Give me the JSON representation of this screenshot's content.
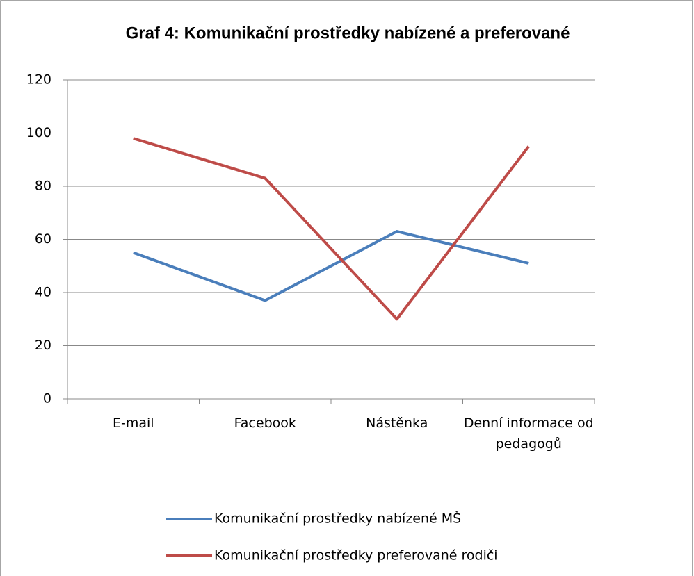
{
  "chart_data": {
    "type": "line",
    "title": "Graf 4: Komunikační prostředky nabízené a preferované",
    "categories": [
      "E-mail",
      "Facebook",
      "Nástěnka",
      "Denní informace od pedagogů"
    ],
    "series": [
      {
        "name": "Komunikační prostředky nabízené MŠ",
        "color": "#4a7ebb",
        "values": [
          55,
          37,
          63,
          51
        ]
      },
      {
        "name": "Komunikační prostředky preferované rodiči",
        "color": "#be4b48",
        "values": [
          98,
          83,
          30,
          95
        ]
      }
    ],
    "ylim": [
      0,
      120
    ],
    "yticks": [
      0,
      20,
      40,
      60,
      80,
      100,
      120
    ],
    "grid": true,
    "legend": "bottom"
  }
}
